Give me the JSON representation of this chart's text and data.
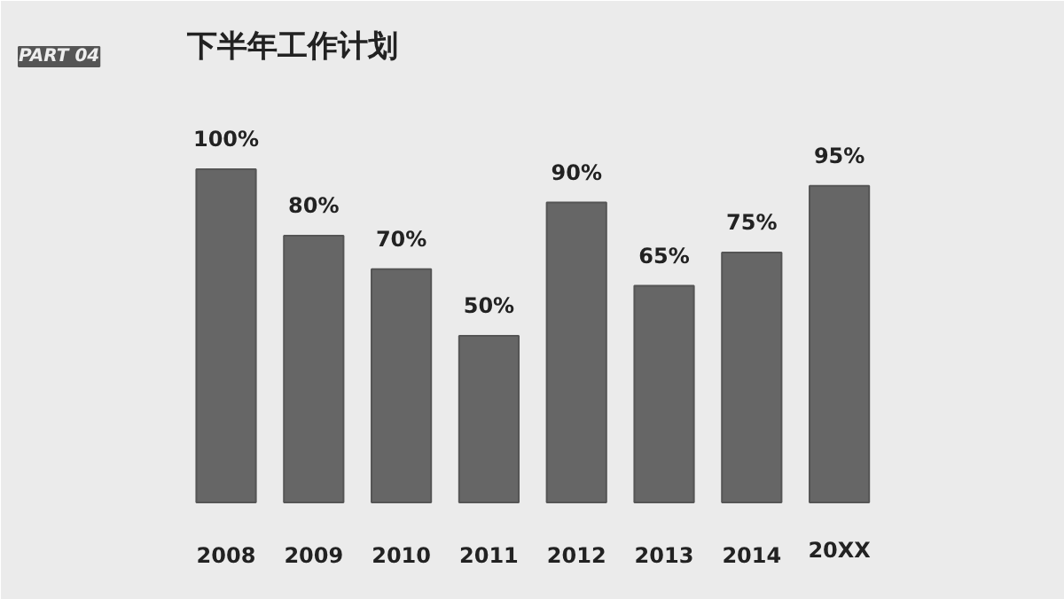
{
  "chart_data": {
    "type": "bar",
    "title": "下半年工作计划",
    "annotations": [
      "PART 04"
    ],
    "categories": [
      "2008",
      "2009",
      "2010",
      "2011",
      "2012",
      "2013",
      "2014",
      "20XX"
    ],
    "values": [
      100,
      80,
      70,
      50,
      90,
      65,
      75,
      95
    ],
    "value_labels": [
      "100%",
      "80%",
      "70%",
      "50%",
      "90%",
      "65%",
      "75%",
      "95%"
    ],
    "color": "#666666",
    "grid": false
  }
}
